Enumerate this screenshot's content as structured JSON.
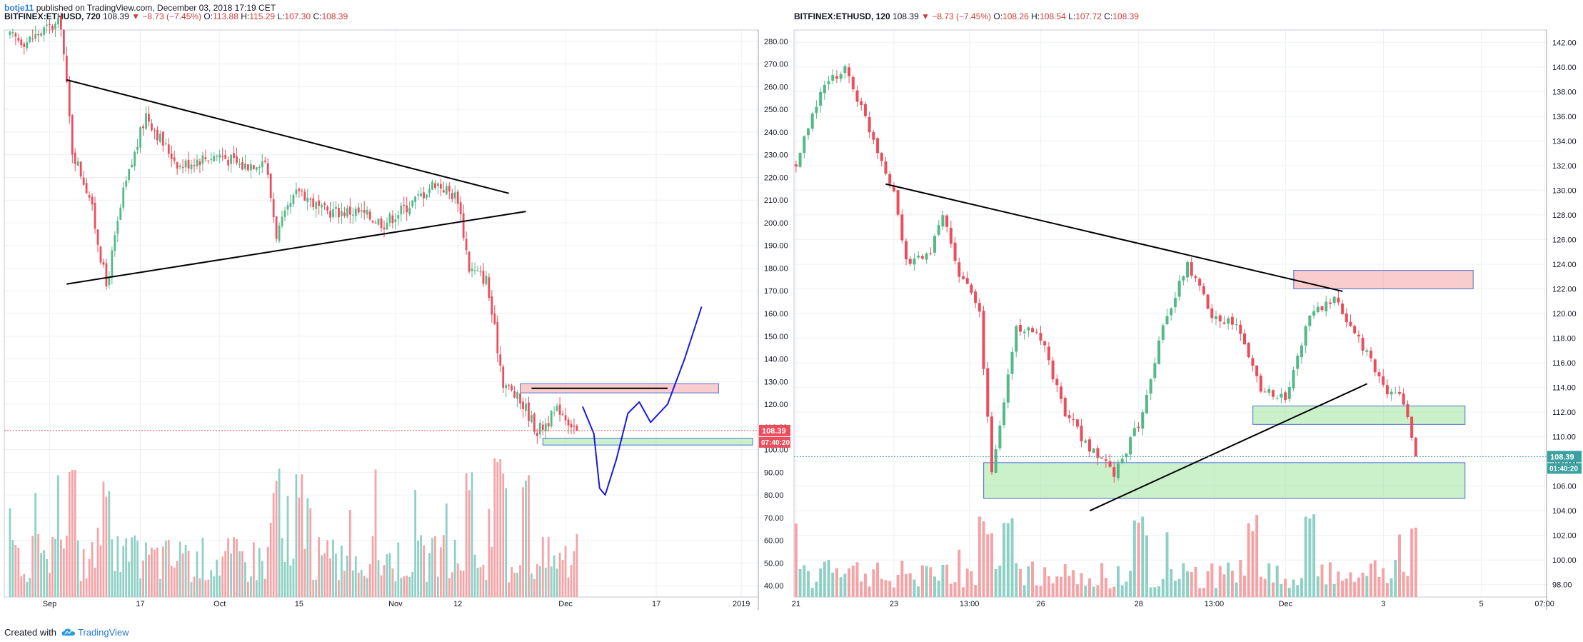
{
  "header": {
    "user": "botje11",
    "published": "published on TradingView.com, December 03, 2018 17:19 CET"
  },
  "footer": {
    "created_with": "Created with",
    "brand": "TradingView"
  },
  "colors": {
    "up": "#53b987",
    "down": "#eb4d5c",
    "vol_up": "#8fd0c5",
    "vol_down": "#f4a3a6",
    "trend": "#000000",
    "forecast": "#1a1adb"
  },
  "left_pane": {
    "symbol": "BITFINEX:ETHUSD, 720",
    "last": "108.39",
    "change": "−8.73 (−7.45%)",
    "o_label": "O:",
    "o": "113.88",
    "h_label": "H:",
    "h": "115.29",
    "l_label": "L:",
    "l": "107.30",
    "c_label": "C:",
    "c": "108.39",
    "price_tag": "108.39",
    "countdown": "07:40:20"
  },
  "right_pane": {
    "symbol": "BITFINEX:ETHUSD, 120",
    "last": "108.39",
    "change": "−8.73 (−7.45%)",
    "o_label": "O:",
    "o": "108.26",
    "h_label": "H:",
    "h": "108.54",
    "l_label": "L:",
    "l": "107.72",
    "c_label": "C:",
    "c": "108.39",
    "price_tag": "108.39",
    "countdown": "01:40:20"
  },
  "chart_data": [
    {
      "type": "candlestick",
      "symbol": "BITFINEX:ETHUSD",
      "interval": "720",
      "y_ticks": [
        "40.00",
        "50.00",
        "60.00",
        "70.00",
        "80.00",
        "90.00",
        "100.00",
        "110.00",
        "120.00",
        "130.00",
        "140.00",
        "150.00",
        "160.00",
        "170.00",
        "180.00",
        "190.00",
        "200.00",
        "210.00",
        "220.00",
        "230.00",
        "240.00",
        "250.00",
        "260.00",
        "270.00",
        "280.00"
      ],
      "x_ticks": [
        "Sep",
        "17",
        "Oct",
        "15",
        "Nov",
        "12",
        "Dec",
        "17",
        "2019"
      ],
      "ylim": [
        35,
        285
      ],
      "close_path": [
        {
          "x": "Aug 25",
          "y": 282
        },
        {
          "x": "Aug 28",
          "y": 280
        },
        {
          "x": "Aug 31",
          "y": 285
        },
        {
          "x": "Sep 3",
          "y": 288
        },
        {
          "x": "Sep 5",
          "y": 232
        },
        {
          "x": "Sep 8",
          "y": 212
        },
        {
          "x": "Sep 11",
          "y": 172
        },
        {
          "x": "Sep 14",
          "y": 213
        },
        {
          "x": "Sep 18",
          "y": 248
        },
        {
          "x": "Sep 21",
          "y": 235
        },
        {
          "x": "Sep 24",
          "y": 225
        },
        {
          "x": "Sep 27",
          "y": 228
        },
        {
          "x": "Oct 1",
          "y": 230
        },
        {
          "x": "Oct 5",
          "y": 225
        },
        {
          "x": "Oct 9",
          "y": 228
        },
        {
          "x": "Oct 11",
          "y": 195
        },
        {
          "x": "Oct 15",
          "y": 215
        },
        {
          "x": "Oct 19",
          "y": 205
        },
        {
          "x": "Oct 25",
          "y": 205
        },
        {
          "x": "Oct 30",
          "y": 200
        },
        {
          "x": "Nov 5",
          "y": 211
        },
        {
          "x": "Nov 8",
          "y": 218
        },
        {
          "x": "Nov 12",
          "y": 211
        },
        {
          "x": "Nov 14",
          "y": 180
        },
        {
          "x": "Nov 17",
          "y": 175
        },
        {
          "x": "Nov 20",
          "y": 130
        },
        {
          "x": "Nov 24",
          "y": 118
        },
        {
          "x": "Nov 26",
          "y": 108
        },
        {
          "x": "Nov 30",
          "y": 118
        },
        {
          "x": "Dec 3",
          "y": 108.39
        }
      ],
      "volume_range": [
        40,
        100
      ],
      "trendlines": [
        {
          "from": {
            "x": "Sep 4",
            "y": 263
          },
          "to": {
            "x": "Nov 21",
            "y": 213
          }
        },
        {
          "from": {
            "x": "Sep 4",
            "y": 173
          },
          "to": {
            "x": "Nov 24",
            "y": 205
          }
        },
        {
          "from": {
            "x": "Nov 25",
            "y": 127
          },
          "to": {
            "x": "Dec 19",
            "y": 127
          }
        }
      ],
      "zones": [
        {
          "kind": "resistance",
          "from_x": "Nov 23",
          "to_x": "Dec 28",
          "y_min": 125,
          "y_max": 129
        },
        {
          "kind": "support",
          "from_x": "Nov 27",
          "to_x": "Jan 3",
          "y_min": 102,
          "y_max": 105
        }
      ],
      "forecast_path": [
        {
          "x": "Dec 4",
          "y": 119
        },
        {
          "x": "Dec 6",
          "y": 107
        },
        {
          "x": "Dec 7",
          "y": 83
        },
        {
          "x": "Dec 8",
          "y": 80
        },
        {
          "x": "Dec 10",
          "y": 96
        },
        {
          "x": "Dec 12",
          "y": 116
        },
        {
          "x": "Dec 14",
          "y": 121
        },
        {
          "x": "Dec 16",
          "y": 112
        },
        {
          "x": "Dec 19",
          "y": 120
        },
        {
          "x": "Dec 22",
          "y": 140
        },
        {
          "x": "Dec 25",
          "y": 163
        }
      ]
    },
    {
      "type": "candlestick",
      "symbol": "BITFINEX:ETHUSD",
      "interval": "120",
      "y_ticks": [
        "98.00",
        "100.00",
        "102.00",
        "104.00",
        "106.00",
        "108.00",
        "110.00",
        "112.00",
        "114.00",
        "116.00",
        "118.00",
        "120.00",
        "122.00",
        "124.00",
        "126.00",
        "128.00",
        "130.00",
        "132.00",
        "134.00",
        "136.00",
        "138.00",
        "140.00",
        "142.00"
      ],
      "x_ticks": [
        "21",
        "23",
        "13:00",
        "26",
        "28",
        "13:00",
        "Dec",
        "3",
        "5",
        "07:00"
      ],
      "ylim": [
        97,
        143
      ],
      "close_path": [
        {
          "x": "Nov 21 00:00",
          "y": 132
        },
        {
          "x": "Nov 21 12:00",
          "y": 138
        },
        {
          "x": "Nov 22 00:00",
          "y": 140
        },
        {
          "x": "Nov 22 12:00",
          "y": 135
        },
        {
          "x": "Nov 23 00:00",
          "y": 130
        },
        {
          "x": "Nov 23 06:00",
          "y": 124
        },
        {
          "x": "Nov 23 18:00",
          "y": 125
        },
        {
          "x": "Nov 24 00:00",
          "y": 128
        },
        {
          "x": "Nov 24 06:00",
          "y": 124
        },
        {
          "x": "Nov 24 18:00",
          "y": 120
        },
        {
          "x": "Nov 25 00:00",
          "y": 107
        },
        {
          "x": "Nov 25 12:00",
          "y": 119
        },
        {
          "x": "Nov 26 00:00",
          "y": 118
        },
        {
          "x": "Nov 26 12:00",
          "y": 112
        },
        {
          "x": "Nov 27 00:00",
          "y": 109
        },
        {
          "x": "Nov 27 12:00",
          "y": 107
        },
        {
          "x": "Nov 28 00:00",
          "y": 111
        },
        {
          "x": "Nov 28 12:00",
          "y": 119
        },
        {
          "x": "Nov 29 00:00",
          "y": 124
        },
        {
          "x": "Nov 29 12:00",
          "y": 120
        },
        {
          "x": "Nov 30 00:00",
          "y": 119
        },
        {
          "x": "Nov 30 12:00",
          "y": 114
        },
        {
          "x": "Dec 1 00:00",
          "y": 113
        },
        {
          "x": "Dec 1 12:00",
          "y": 120
        },
        {
          "x": "Dec 2 00:00",
          "y": 121
        },
        {
          "x": "Dec 2 12:00",
          "y": 118
        },
        {
          "x": "Dec 3 00:00",
          "y": 114
        },
        {
          "x": "Dec 3 10:00",
          "y": 113
        },
        {
          "x": "Dec 3 16:00",
          "y": 108.39
        }
      ],
      "volume_range": [
        97,
        103
      ],
      "trendlines": [
        {
          "from": {
            "x": "Nov 22 20:00",
            "y": 130.5
          },
          "to": {
            "x": "Dec 2 04:00",
            "y": 121.8
          }
        },
        {
          "from": {
            "x": "Nov 27 00:00",
            "y": 104
          },
          "to": {
            "x": "Dec 2 16:00",
            "y": 114.3
          }
        }
      ],
      "zones": [
        {
          "kind": "resistance",
          "from_x": "Dec 1 04:00",
          "to_x": "Dec 4 20:00",
          "y_min": 122,
          "y_max": 123.5
        },
        {
          "kind": "support",
          "from_x": "Nov 30 08:00",
          "to_x": "Dec 4 16:00",
          "y_min": 111,
          "y_max": 112.5
        },
        {
          "kind": "support",
          "from_x": "Nov 24 20:00",
          "to_x": "Dec 4 16:00",
          "y_min": 105,
          "y_max": 107.9
        }
      ]
    }
  ]
}
